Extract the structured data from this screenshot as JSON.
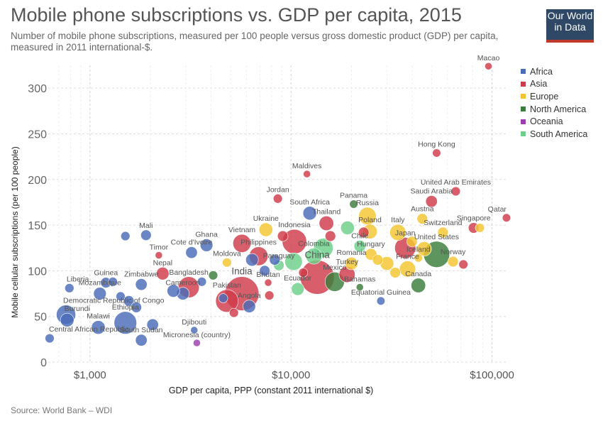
{
  "header": {
    "title": "Mobile phone subscriptions vs. GDP per capita, 2015",
    "subtitle": "Number of mobile phone subscriptions, measured per 100 people versus gross domestic product (GDP) per capita, measured in 2011 international-$.",
    "logo_line1": "Our World",
    "logo_line2": "in Data"
  },
  "footer": {
    "source": "Source: World Bank – WDI"
  },
  "colors": {
    "Africa": "#4a6bb8",
    "Asia": "#cf3a4a",
    "Europe": "#f4c430",
    "North America": "#3a7d3a",
    "Oceania": "#9b3fb0",
    "South America": "#6ccf8a"
  },
  "chart_data": {
    "type": "scatter",
    "xlabel": "GDP per capita, PPP (constant 2011 international $)",
    "ylabel": "Mobile cellular subscriptions (per 100 people)",
    "xscale": "log",
    "xlim": [
      620,
      120000
    ],
    "ylim": [
      0,
      325
    ],
    "x_ticks": [
      1000,
      10000,
      100000
    ],
    "x_tick_labels": [
      "$1,000",
      "$10,000",
      "$100,000"
    ],
    "y_ticks": [
      0,
      50,
      100,
      150,
      200,
      250,
      300
    ],
    "grid": true,
    "legend_position": "right",
    "legend": [
      "Africa",
      "Asia",
      "Europe",
      "North America",
      "Oceania",
      "South America"
    ],
    "points": [
      {
        "label": "Macao",
        "x": 96000,
        "y": 324,
        "region": "Asia",
        "size": 1
      },
      {
        "label": "Hong Kong",
        "x": 53000,
        "y": 229,
        "region": "Asia",
        "size": 1.5
      },
      {
        "label": "Maldives",
        "x": 12000,
        "y": 206,
        "region": "Asia",
        "size": 1
      },
      {
        "label": "Jordan",
        "x": 8600,
        "y": 179,
        "region": "Asia",
        "size": 2
      },
      {
        "label": "United Arab Emirates",
        "x": 66000,
        "y": 187,
        "region": "Asia",
        "size": 2
      },
      {
        "label": "Saudi Arabia",
        "x": 50000,
        "y": 176,
        "region": "Asia",
        "size": 4
      },
      {
        "label": "Panama",
        "x": 20500,
        "y": 173,
        "region": "North America",
        "size": 1.5
      },
      {
        "label": "South Africa",
        "x": 12400,
        "y": 163,
        "region": "Africa",
        "size": 6
      },
      {
        "label": "Thailand",
        "x": 15000,
        "y": 152,
        "region": "Asia",
        "size": 7
      },
      {
        "label": "Russia",
        "x": 24000,
        "y": 160,
        "region": "Europe",
        "size": 11
      },
      {
        "label": "Austria",
        "x": 45000,
        "y": 157,
        "region": "Europe",
        "size": 3
      },
      {
        "label": "Qatar",
        "x": 118000,
        "y": 158,
        "region": "Asia",
        "size": 1.5
      },
      {
        "label": "Singapore",
        "x": 81000,
        "y": 147,
        "region": "Asia",
        "size": 3
      },
      {
        "label": "Switzerland",
        "x": 57000,
        "y": 142,
        "region": "Europe",
        "size": 3
      },
      {
        "label": "Poland",
        "x": 24700,
        "y": 143,
        "region": "Europe",
        "size": 7
      },
      {
        "label": "Italy",
        "x": 34000,
        "y": 142,
        "region": "Europe",
        "size": 9
      },
      {
        "label": "Mali",
        "x": 1900,
        "y": 139,
        "region": "Africa",
        "size": 3
      },
      {
        "label": "Ukraine",
        "x": 7500,
        "y": 145,
        "region": "Europe",
        "size": 6
      },
      {
        "label": "Indonesia",
        "x": 10400,
        "y": 132,
        "region": "Asia",
        "size": 24
      },
      {
        "label": "Ghana",
        "x": 3800,
        "y": 128,
        "region": "Africa",
        "size": 5
      },
      {
        "label": "Vietnam",
        "x": 5700,
        "y": 130,
        "region": "Asia",
        "size": 12
      },
      {
        "label": "Cote d'Ivoire",
        "x": 3200,
        "y": 120,
        "region": "Africa",
        "size": 4
      },
      {
        "label": "Timor",
        "x": 2200,
        "y": 117,
        "region": "Asia",
        "size": 1
      },
      {
        "label": "Philippines",
        "x": 6900,
        "y": 116,
        "region": "Asia",
        "size": 13
      },
      {
        "label": "Colombia",
        "x": 13000,
        "y": 116,
        "region": "South America",
        "size": 9
      },
      {
        "label": "Chile",
        "x": 22000,
        "y": 127,
        "region": "South America",
        "size": 4
      },
      {
        "label": "Japan",
        "x": 37000,
        "y": 125,
        "region": "Asia",
        "size": 17
      },
      {
        "label": "Hungary",
        "x": 25000,
        "y": 118,
        "region": "Europe",
        "size": 4
      },
      {
        "label": "Iceland",
        "x": 43000,
        "y": 114,
        "region": "Europe",
        "size": 1.5
      },
      {
        "label": "United States",
        "x": 53000,
        "y": 118,
        "region": "North America",
        "size": 28
      },
      {
        "label": "Norway",
        "x": 64000,
        "y": 110,
        "region": "Europe",
        "size": 3
      },
      {
        "label": "Moldova",
        "x": 4800,
        "y": 109,
        "region": "Europe",
        "size": 2
      },
      {
        "label": "Paraguay",
        "x": 8700,
        "y": 106,
        "region": "South America",
        "size": 3
      },
      {
        "label": "China",
        "x": 13500,
        "y": 93,
        "region": "Asia",
        "size": 50
      },
      {
        "label": "Romania",
        "x": 20000,
        "y": 108,
        "region": "Europe",
        "size": 5
      },
      {
        "label": "France",
        "x": 38000,
        "y": 102,
        "region": "Europe",
        "size": 9
      },
      {
        "label": "Turkey",
        "x": 19000,
        "y": 96,
        "region": "Asia",
        "size": 9
      },
      {
        "label": "Nepal",
        "x": 2300,
        "y": 97,
        "region": "Asia",
        "size": 5
      },
      {
        "label": "Guinea",
        "x": 1200,
        "y": 87,
        "region": "Africa",
        "size": 3
      },
      {
        "label": "Zimbabwe",
        "x": 1800,
        "y": 85,
        "region": "Africa",
        "size": 4
      },
      {
        "label": "Bangladesh",
        "x": 3100,
        "y": 82,
        "region": "Asia",
        "size": 17
      },
      {
        "label": "India",
        "x": 5700,
        "y": 75,
        "region": "Asia",
        "size": 50
      },
      {
        "label": "Bhutan",
        "x": 7700,
        "y": 87,
        "region": "Asia",
        "size": 1
      },
      {
        "label": "Mexico",
        "x": 16500,
        "y": 88,
        "region": "North America",
        "size": 14
      },
      {
        "label": "Ecuador",
        "x": 10800,
        "y": 80,
        "region": "South America",
        "size": 5
      },
      {
        "label": "Bahamas",
        "x": 22000,
        "y": 82,
        "region": "North America",
        "size": 1
      },
      {
        "label": "Canada",
        "x": 43000,
        "y": 84,
        "region": "North America",
        "size": 7
      },
      {
        "label": "Equatorial Guinea",
        "x": 28000,
        "y": 67,
        "region": "Africa",
        "size": 1.5
      },
      {
        "label": "Liberia",
        "x": 790,
        "y": 81,
        "region": "Africa",
        "size": 2
      },
      {
        "label": "Mozambique",
        "x": 1120,
        "y": 75,
        "region": "Africa",
        "size": 5
      },
      {
        "label": "Cameroon",
        "x": 2900,
        "y": 75,
        "region": "Africa",
        "size": 5
      },
      {
        "label": "Pakistan",
        "x": 4800,
        "y": 67,
        "region": "Asia",
        "size": 20
      },
      {
        "label": "Angola",
        "x": 6200,
        "y": 61,
        "region": "Africa",
        "size": 5
      },
      {
        "label": "Democratic Republic of Congo",
        "x": 760,
        "y": 52,
        "region": "Africa",
        "size": 14
      },
      {
        "label": "Burundi",
        "x": 770,
        "y": 46,
        "region": "Africa",
        "size": 6
      },
      {
        "label": "Ethiopia",
        "x": 1500,
        "y": 43,
        "region": "Africa",
        "size": 20
      },
      {
        "label": "Malawi",
        "x": 1100,
        "y": 38,
        "region": "Africa",
        "size": 6
      },
      {
        "label": "Djibouti",
        "x": 3300,
        "y": 35,
        "region": "Africa",
        "size": 1
      },
      {
        "label": "South Sudan",
        "x": 1800,
        "y": 24,
        "region": "Africa",
        "size": 4
      },
      {
        "label": "Central African Republic",
        "x": 630,
        "y": 26,
        "region": "Africa",
        "size": 2
      },
      {
        "label": "Micronesia (country)",
        "x": 3400,
        "y": 21,
        "region": "Oceania",
        "size": 1
      },
      {
        "label": "",
        "x": 1500,
        "y": 138,
        "region": "Africa",
        "size": 2
      },
      {
        "label": "",
        "x": 1300,
        "y": 88,
        "region": "Africa",
        "size": 2
      },
      {
        "label": "",
        "x": 1420,
        "y": 72,
        "region": "Africa",
        "size": 2
      },
      {
        "label": "",
        "x": 1560,
        "y": 67,
        "region": "Africa",
        "size": 3
      },
      {
        "label": "",
        "x": 1700,
        "y": 60,
        "region": "Africa",
        "size": 3
      },
      {
        "label": "",
        "x": 2050,
        "y": 41,
        "region": "Africa",
        "size": 4
      },
      {
        "label": "",
        "x": 2600,
        "y": 78,
        "region": "Africa",
        "size": 5
      },
      {
        "label": "",
        "x": 3600,
        "y": 88,
        "region": "Africa",
        "size": 2
      },
      {
        "label": "",
        "x": 4100,
        "y": 95,
        "region": "North America",
        "size": 2
      },
      {
        "label": "",
        "x": 4600,
        "y": 70,
        "region": "Africa",
        "size": 2
      },
      {
        "label": "",
        "x": 5200,
        "y": 54,
        "region": "Asia",
        "size": 2
      },
      {
        "label": "",
        "x": 6400,
        "y": 112,
        "region": "Africa",
        "size": 5
      },
      {
        "label": "",
        "x": 7400,
        "y": 100,
        "region": "Africa",
        "size": 3
      },
      {
        "label": "",
        "x": 7800,
        "y": 73,
        "region": "Asia",
        "size": 2
      },
      {
        "label": "",
        "x": 8300,
        "y": 112,
        "region": "Africa",
        "size": 3
      },
      {
        "label": "",
        "x": 9100,
        "y": 138,
        "region": "Asia",
        "size": 3
      },
      {
        "label": "",
        "x": 10300,
        "y": 110,
        "region": "South America",
        "size": 11
      },
      {
        "label": "",
        "x": 11500,
        "y": 98,
        "region": "Asia",
        "size": 2
      },
      {
        "label": "",
        "x": 14500,
        "y": 125,
        "region": "South America",
        "size": 14
      },
      {
        "label": "",
        "x": 15700,
        "y": 138,
        "region": "Asia",
        "size": 3
      },
      {
        "label": "",
        "x": 19100,
        "y": 147,
        "region": "South America",
        "size": 6
      },
      {
        "label": "",
        "x": 23000,
        "y": 142,
        "region": "Asia",
        "size": 3
      },
      {
        "label": "",
        "x": 27000,
        "y": 112,
        "region": "Europe",
        "size": 3
      },
      {
        "label": "",
        "x": 30000,
        "y": 108,
        "region": "Europe",
        "size": 6
      },
      {
        "label": "",
        "x": 33000,
        "y": 98,
        "region": "Europe",
        "size": 3
      },
      {
        "label": "",
        "x": 40000,
        "y": 132,
        "region": "Europe",
        "size": 3
      },
      {
        "label": "",
        "x": 46000,
        "y": 124,
        "region": "Europe",
        "size": 7
      },
      {
        "label": "",
        "x": 72000,
        "y": 107,
        "region": "Asia",
        "size": 2
      },
      {
        "label": "",
        "x": 87000,
        "y": 147,
        "region": "Europe",
        "size": 2
      }
    ]
  }
}
